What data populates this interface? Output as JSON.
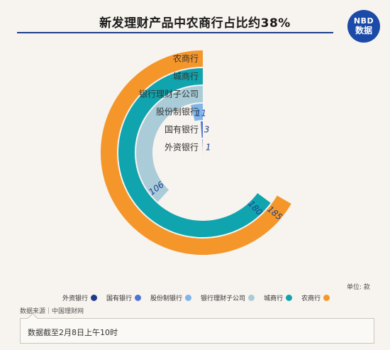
{
  "header": {
    "title": "新发理财产品中农商行占比约38%",
    "logo_line1": "NBD",
    "logo_line2": "数据"
  },
  "chart_data": {
    "type": "radial-bar",
    "title": "新发理财产品中农商行占比约38%",
    "unit": "单位: 款",
    "max_value": 185,
    "categories": [
      "农商行",
      "城商行",
      "银行理财子公司",
      "股份制银行",
      "国有银行",
      "外资银行"
    ],
    "values": [
      185,
      180,
      106,
      11,
      3,
      1
    ],
    "colors": [
      "#f5962a",
      "#10a4ae",
      "#a9ccd8",
      "#7fb5ea",
      "#4f74d8",
      "#1e3a8a"
    ],
    "legend": {
      "position": "bottom",
      "entries": [
        {
          "label": "外资银行",
          "color": "#1e3a8a"
        },
        {
          "label": "国有银行",
          "color": "#4f74d8"
        },
        {
          "label": "股份制银行",
          "color": "#7fb5ea"
        },
        {
          "label": "银行理财子公司",
          "color": "#a9ccd8"
        },
        {
          "label": "城商行",
          "color": "#10a4ae"
        },
        {
          "label": "农商行",
          "color": "#f5962a"
        }
      ]
    }
  },
  "footer": {
    "source": "数据来源｜中国理财网",
    "note": "数据截至2月8日上午10时"
  },
  "colors": {
    "title_rule": "#1f3f8f",
    "background": "#f7f3ee",
    "logo": "#1b4aa8"
  }
}
